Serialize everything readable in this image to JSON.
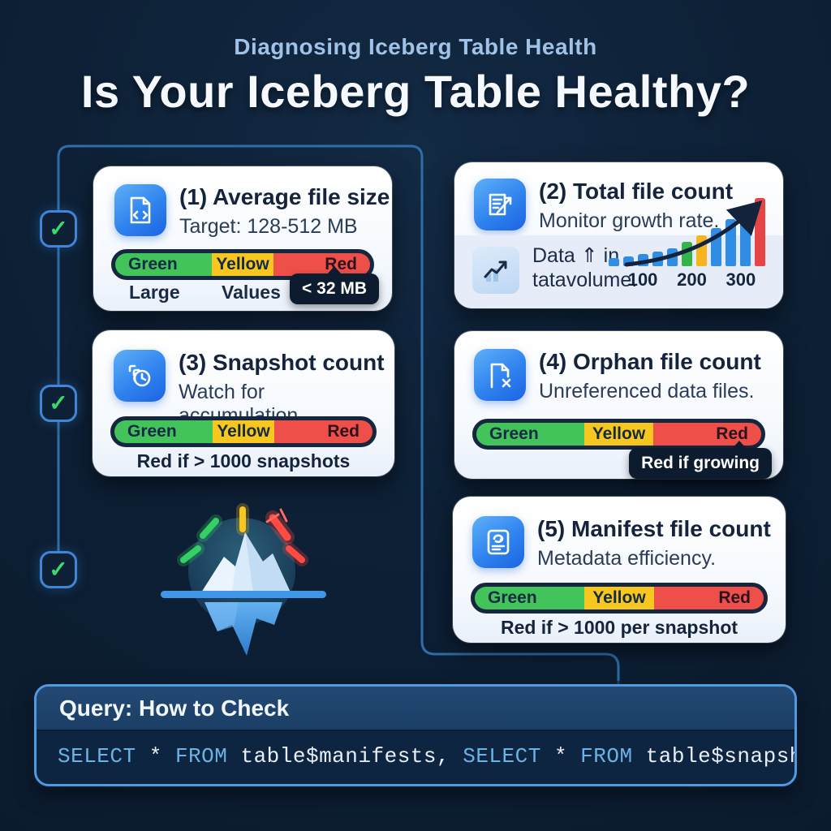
{
  "colors": {
    "background": "#0d2036",
    "green": "#42c45a",
    "yellow": "#f7c71f",
    "red": "#ef4f49",
    "navy": "#15263f",
    "accent_blue": "#3f86d8",
    "code_keyword": "#6cb2e2"
  },
  "header": {
    "subtitle": "Diagnosing Iceberg Table Health",
    "title": "Is Your Iceberg Table Healthy?"
  },
  "checkmarks": {
    "glyph": "✓"
  },
  "gauge_default": [
    {
      "label": "Green",
      "color": "#42c45a",
      "pct": 38
    },
    {
      "label": "Yellow",
      "color": "#f7c71f",
      "pct": 24
    },
    {
      "label": "Red",
      "color": "#ef4f49",
      "pct": 38
    }
  ],
  "cards": {
    "c1": {
      "title": "(1) Average file size",
      "subtitle": "Target: 128-512 MB",
      "icon": "file-code-icon",
      "scale_left": "Large",
      "scale_center": "Values",
      "tooltip": "< 32 MB"
    },
    "c2": {
      "title": "(2) Total file count",
      "subtitle": "Monitor growth rate.",
      "icon": "clipboard-growth-icon",
      "note_line1": "Data ⇑ in",
      "note_line2": "tatavolume.",
      "chart": {
        "type": "bar",
        "values": [
          10,
          12,
          15,
          18,
          22,
          30,
          38,
          47,
          58,
          70,
          84
        ],
        "colors": [
          "#2f8de4",
          "#2f8de4",
          "#2f8de4",
          "#2f8de4",
          "#2f8de4",
          "#34b44a",
          "#f6b51e",
          "#2f8de4",
          "#2f8de4",
          "#2f8de4",
          "#e64545"
        ],
        "x_labels": [
          "100",
          "200",
          "300"
        ]
      }
    },
    "c3": {
      "title": "(3) Snapshot count",
      "subtitle": "Watch for accumulation.",
      "icon": "snapshot-history-icon",
      "footer": "Red if > 1000 snapshots"
    },
    "c4": {
      "title": "(4) Orphan file count",
      "subtitle": "Unreferenced data files.",
      "icon": "file-x-icon",
      "tooltip": "Red if growing"
    },
    "c5": {
      "title": "(5) Manifest file count",
      "subtitle": "Metadata efficiency.",
      "icon": "manifest-doc-icon",
      "footer": "Red if > 1000 per snapshot"
    }
  },
  "query": {
    "title": "Query: How to Check",
    "code": [
      {
        "text": "SELECT",
        "type": "kw"
      },
      {
        "text": " * ",
        "type": "plain"
      },
      {
        "text": "FROM",
        "type": "kw"
      },
      {
        "text": " table$manifests, ",
        "type": "plain"
      },
      {
        "text": "SELECT",
        "type": "kw"
      },
      {
        "text": " * ",
        "type": "plain"
      },
      {
        "text": "FROM",
        "type": "kw"
      },
      {
        "text": " table$snapshots",
        "type": "plain"
      }
    ]
  }
}
